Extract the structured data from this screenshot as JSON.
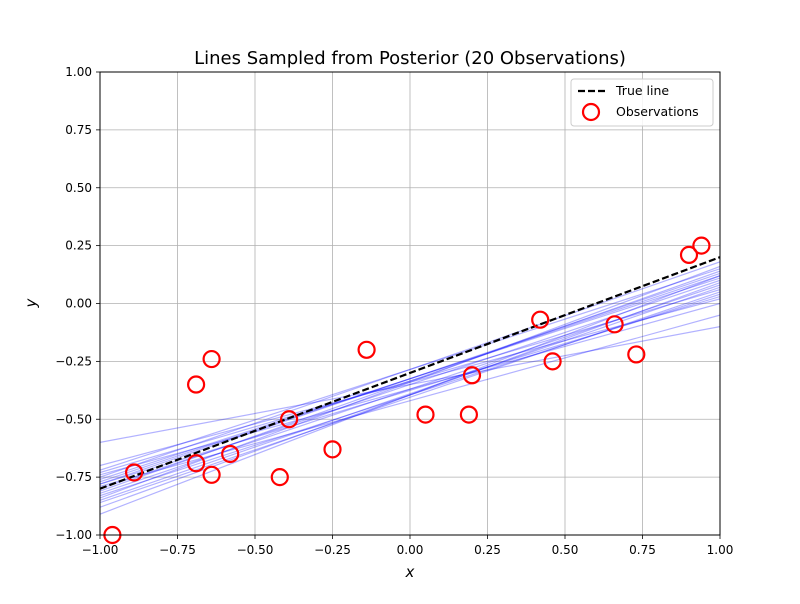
{
  "chart_data": {
    "type": "scatter",
    "title": "Lines Sampled from Posterior (20 Observations)",
    "xlabel": "x",
    "ylabel": "y",
    "xlim": [
      -1.0,
      1.0
    ],
    "ylim": [
      -1.0,
      1.0
    ],
    "xticks": [
      "−1.00",
      "−0.75",
      "−0.50",
      "−0.25",
      "0.00",
      "0.25",
      "0.50",
      "0.75",
      "1.00"
    ],
    "xtick_values": [
      -1.0,
      -0.75,
      -0.5,
      -0.25,
      0.0,
      0.25,
      0.5,
      0.75,
      1.0
    ],
    "yticks": [
      "−1.00",
      "−0.75",
      "−0.50",
      "−0.25",
      "0.00",
      "0.25",
      "0.50",
      "0.75",
      "1.00"
    ],
    "ytick_values": [
      -1.0,
      -0.75,
      -0.5,
      -0.25,
      0.0,
      0.25,
      0.5,
      0.75,
      1.0
    ],
    "grid": true,
    "legend": {
      "position": "top-right",
      "entries": [
        "True line",
        "Observations"
      ]
    },
    "true_line": {
      "name": "True line",
      "x": [
        -1.0,
        1.0
      ],
      "y": [
        -0.8,
        0.2
      ],
      "color": "#000000",
      "style": "dashed"
    },
    "posterior_lines": {
      "color": "#0000ff",
      "lines": [
        {
          "y_at_x_minus1": -0.72,
          "y_at_x_plus1": 0.15
        },
        {
          "y_at_x_minus1": -0.75,
          "y_at_x_plus1": 0.18
        },
        {
          "y_at_x_minus1": -0.77,
          "y_at_x_plus1": 0.12
        },
        {
          "y_at_x_minus1": -0.8,
          "y_at_x_plus1": 0.1
        },
        {
          "y_at_x_minus1": -0.82,
          "y_at_x_plus1": 0.08
        },
        {
          "y_at_x_minus1": -0.84,
          "y_at_x_plus1": 0.16
        },
        {
          "y_at_x_minus1": -0.86,
          "y_at_x_plus1": 0.05
        },
        {
          "y_at_x_minus1": -0.78,
          "y_at_x_plus1": 0.03
        },
        {
          "y_at_x_minus1": -0.74,
          "y_at_x_plus1": 0.0
        },
        {
          "y_at_x_minus1": -0.91,
          "y_at_x_plus1": 0.12
        },
        {
          "y_at_x_minus1": -0.6,
          "y_at_x_plus1": -0.1
        },
        {
          "y_at_x_minus1": -0.79,
          "y_at_x_plus1": -0.05
        },
        {
          "y_at_x_minus1": -0.73,
          "y_at_x_plus1": 0.06
        },
        {
          "y_at_x_minus1": -0.83,
          "y_at_x_plus1": 0.04
        },
        {
          "y_at_x_minus1": -0.88,
          "y_at_x_plus1": 0.09
        },
        {
          "y_at_x_minus1": -0.76,
          "y_at_x_plus1": 0.11
        },
        {
          "y_at_x_minus1": -0.81,
          "y_at_x_plus1": 0.14
        },
        {
          "y_at_x_minus1": -0.7,
          "y_at_x_plus1": 0.02
        },
        {
          "y_at_x_minus1": -0.85,
          "y_at_x_plus1": 0.07
        },
        {
          "y_at_x_minus1": -0.78,
          "y_at_x_plus1": 0.13
        }
      ]
    },
    "observations": {
      "name": "Observations",
      "color": "#ff0000",
      "points": [
        {
          "x": -0.96,
          "y": -1.0
        },
        {
          "x": -0.89,
          "y": -0.73
        },
        {
          "x": -0.69,
          "y": -0.35
        },
        {
          "x": -0.69,
          "y": -0.69
        },
        {
          "x": -0.64,
          "y": -0.24
        },
        {
          "x": -0.64,
          "y": -0.74
        },
        {
          "x": -0.58,
          "y": -0.65
        },
        {
          "x": -0.42,
          "y": -0.75
        },
        {
          "x": -0.39,
          "y": -0.5
        },
        {
          "x": -0.25,
          "y": -0.63
        },
        {
          "x": -0.14,
          "y": -0.2
        },
        {
          "x": 0.05,
          "y": -0.48
        },
        {
          "x": 0.19,
          "y": -0.48
        },
        {
          "x": 0.2,
          "y": -0.31
        },
        {
          "x": 0.42,
          "y": -0.07
        },
        {
          "x": 0.46,
          "y": -0.25
        },
        {
          "x": 0.66,
          "y": -0.09
        },
        {
          "x": 0.73,
          "y": -0.22
        },
        {
          "x": 0.9,
          "y": 0.21
        },
        {
          "x": 0.94,
          "y": 0.25
        }
      ]
    }
  }
}
